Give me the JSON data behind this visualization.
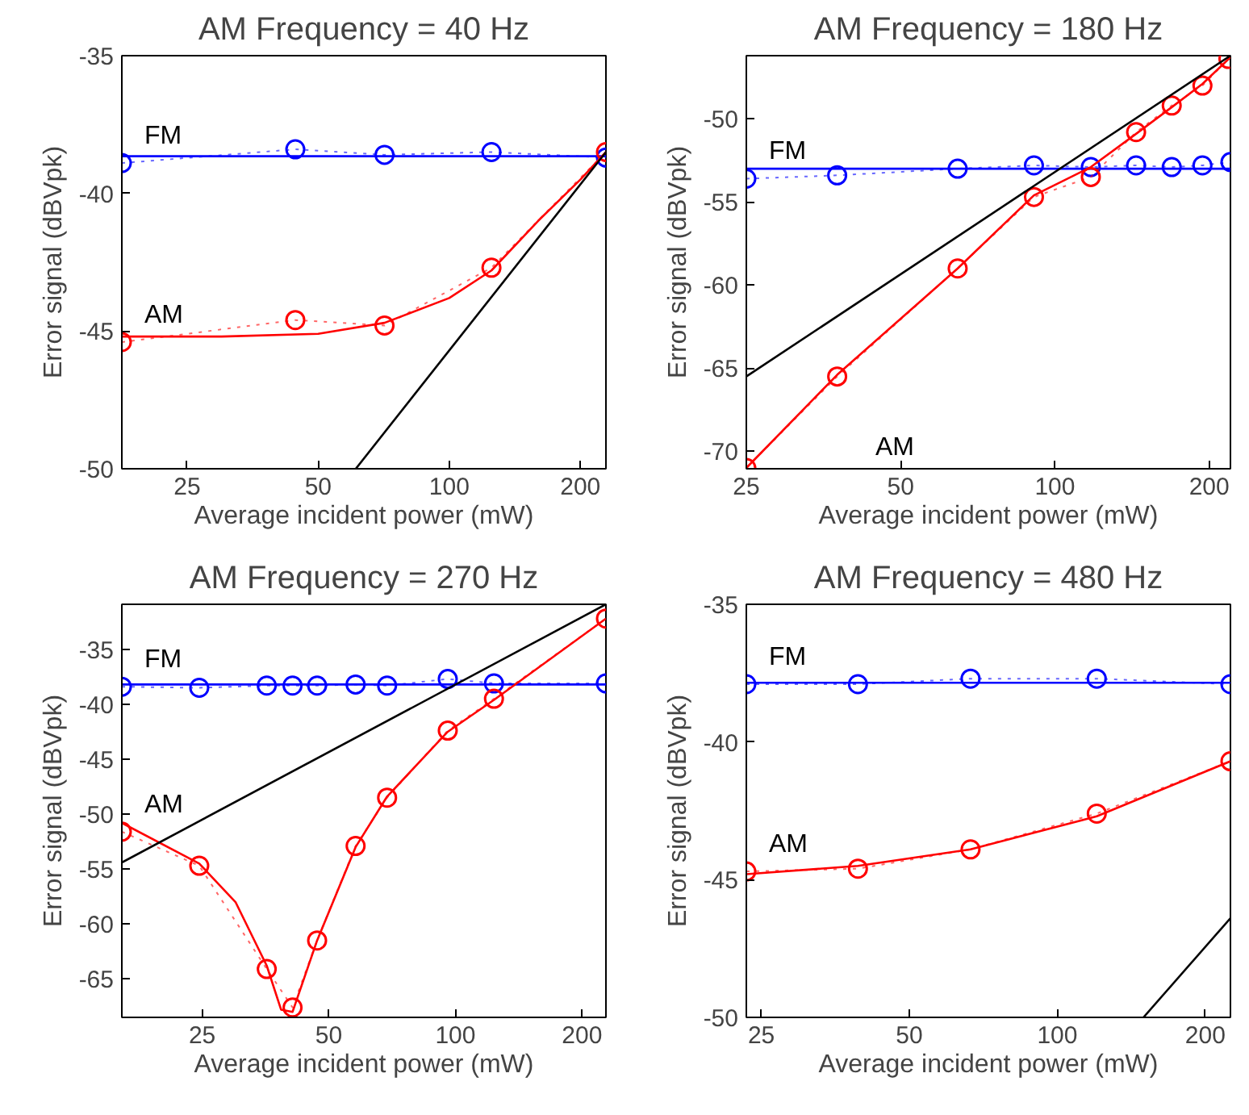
{
  "chart_data": [
    {
      "type": "line",
      "title": "AM Frequency = 40 Hz",
      "xlabel": "Average incident power (mW)",
      "ylabel": "Error signal (dBVpk)",
      "log": "x",
      "xlim": [
        17.7,
        229
      ],
      "xticks": [
        25,
        50,
        100,
        200
      ],
      "ylim": [
        -50,
        -35
      ],
      "yticks": [
        -50,
        -45,
        -40,
        -35
      ],
      "series": [
        {
          "name": "FM",
          "color": "#0000ff",
          "marker": "circle",
          "line_style": "dotted",
          "x": [
            17.7,
            44.3,
            71,
            125,
            229
          ],
          "values": [
            -38.9,
            -38.4,
            -38.6,
            -38.5,
            -38.7
          ]
        },
        {
          "color": "#0000ff",
          "marker": "none",
          "line_style": "solid",
          "x": [
            17.7,
            229
          ],
          "values": [
            -38.65,
            -38.65
          ]
        },
        {
          "name": "AM",
          "color": "#ff0000",
          "marker": "circle",
          "line_style": "dotted",
          "x": [
            17.7,
            44.3,
            71,
            125,
            229
          ],
          "values": [
            -45.4,
            -44.6,
            -44.8,
            -42.7,
            -38.5
          ]
        },
        {
          "color": "#ff0000",
          "marker": "none",
          "line_style": "solid",
          "x": [
            17.7,
            30,
            50,
            71,
            100,
            125,
            160,
            200,
            229
          ],
          "values": [
            -45.2,
            -45.2,
            -45.1,
            -44.7,
            -43.8,
            -42.8,
            -41.0,
            -39.5,
            -38.5
          ]
        },
        {
          "color": "#000000",
          "marker": "none",
          "line_style": "solid",
          "x": [
            61,
            229
          ],
          "values": [
            -50,
            -38.5
          ]
        }
      ]
    },
    {
      "type": "line",
      "title": "AM Frequency = 180 Hz",
      "xlabel": "Average incident power (mW)",
      "ylabel": "Error signal (dBVpk)",
      "log": "x",
      "xlim": [
        25,
        220
      ],
      "xticks": [
        25,
        50,
        100,
        200
      ],
      "ylim": [
        -71.05,
        -46.2
      ],
      "yticks": [
        -70,
        -65,
        -60,
        -55,
        -50
      ],
      "series": [
        {
          "name": "FM",
          "color": "#0000ff",
          "marker": "circle",
          "line_style": "dotted",
          "x": [
            25,
            37.6,
            64.6,
            91,
            117.5,
            144,
            169,
            194,
            220
          ],
          "values": [
            -53.6,
            -53.4,
            -53.0,
            -52.8,
            -52.9,
            -52.8,
            -52.9,
            -52.8,
            -52.6
          ]
        },
        {
          "color": "#0000ff",
          "marker": "none",
          "line_style": "solid",
          "x": [
            25,
            220
          ],
          "values": [
            -53.0,
            -53.0
          ]
        },
        {
          "name": "AM",
          "color": "#ff0000",
          "marker": "circle",
          "line_style": "dotted",
          "x": [
            25,
            37.6,
            64.6,
            91,
            117.5,
            144,
            169,
            194,
            218
          ],
          "values": [
            -71.0,
            -65.5,
            -59.0,
            -54.7,
            -53.5,
            -50.8,
            -49.2,
            -48.0,
            -46.4
          ]
        },
        {
          "color": "#ff0000",
          "marker": "none",
          "line_style": "solid",
          "x": [
            25,
            37.6,
            64.6,
            91,
            117.5,
            144,
            169,
            194,
            220
          ],
          "values": [
            -71.0,
            -65.4,
            -59.0,
            -54.6,
            -52.9,
            -50.9,
            -49.3,
            -47.9,
            -46.3
          ]
        },
        {
          "color": "#000000",
          "marker": "none",
          "line_style": "solid",
          "x": [
            25,
            220
          ],
          "values": [
            -65.5,
            -46.2
          ]
        }
      ]
    },
    {
      "type": "line",
      "title": "AM Frequency = 270 Hz",
      "xlabel": "Average incident power (mW)",
      "ylabel": "Error signal (dBVpk)",
      "log": "x",
      "xlim": [
        16.1,
        228
      ],
      "xticks": [
        25,
        50,
        100,
        200
      ],
      "ylim": [
        -68.5,
        -30.9
      ],
      "yticks": [
        -65,
        -60,
        -55,
        -50,
        -45,
        -40,
        -35
      ],
      "series": [
        {
          "name": "FM",
          "color": "#0000ff",
          "marker": "circle",
          "line_style": "dotted",
          "x": [
            16.1,
            24.6,
            35.6,
            41.0,
            46.9,
            57.9,
            68.8,
            95.9,
            123.5,
            228
          ],
          "values": [
            -38.4,
            -38.5,
            -38.3,
            -38.3,
            -38.3,
            -38.2,
            -38.3,
            -37.7,
            -38.1,
            -38.1
          ]
        },
        {
          "color": "#0000ff",
          "marker": "none",
          "line_style": "solid",
          "x": [
            16.1,
            228
          ],
          "values": [
            -38.2,
            -38.2
          ]
        },
        {
          "name": "AM",
          "color": "#ff0000",
          "marker": "circle",
          "line_style": "dotted",
          "x": [
            16.1,
            24.6,
            35.6,
            41.0,
            46.9,
            57.9,
            68.8,
            95.9,
            123.5,
            228
          ],
          "values": [
            -51.6,
            -54.7,
            -64.1,
            -67.6,
            -61.5,
            -52.9,
            -48.5,
            -42.4,
            -39.5,
            -32.2
          ]
        },
        {
          "color": "#ff0000",
          "marker": "none",
          "line_style": "solid",
          "x": [
            16.1,
            24.6,
            30,
            35.6,
            38.5,
            41,
            46.9,
            57.9,
            68.8,
            95.9,
            123.5,
            228
          ],
          "values": [
            -50.8,
            -54.5,
            -58,
            -63.8,
            -67.8,
            -68.0,
            -61.5,
            -53.0,
            -48.4,
            -42.5,
            -39.6,
            -32.2
          ]
        },
        {
          "color": "#000000",
          "marker": "none",
          "line_style": "solid",
          "x": [
            16.1,
            228
          ],
          "values": [
            -54.4,
            -30.9
          ]
        }
      ]
    },
    {
      "type": "line",
      "title": "AM Frequency = 480 Hz",
      "xlabel": "Average incident power (mW)",
      "ylabel": "Error signal (dBVpk)",
      "log": "x",
      "xlim": [
        23.3,
        225
      ],
      "xticks": [
        25,
        50,
        100,
        200
      ],
      "ylim": [
        -50,
        -35
      ],
      "yticks": [
        -50,
        -45,
        -40,
        -35
      ],
      "series": [
        {
          "name": "FM",
          "color": "#0000ff",
          "marker": "circle",
          "line_style": "dotted",
          "x": [
            23.3,
            39.3,
            66.6,
            120.3,
            225
          ],
          "values": [
            -37.9,
            -37.9,
            -37.7,
            -37.7,
            -37.9
          ]
        },
        {
          "color": "#0000ff",
          "marker": "none",
          "line_style": "solid",
          "x": [
            23.3,
            225
          ],
          "values": [
            -37.85,
            -37.85
          ]
        },
        {
          "name": "AM",
          "color": "#ff0000",
          "marker": "circle",
          "line_style": "dotted",
          "x": [
            23.3,
            39.3,
            66.6,
            120.3,
            225
          ],
          "values": [
            -44.7,
            -44.6,
            -43.9,
            -42.6,
            -40.7
          ]
        },
        {
          "color": "#ff0000",
          "marker": "none",
          "line_style": "solid",
          "x": [
            23.3,
            39.3,
            66.6,
            120.3,
            225
          ],
          "values": [
            -44.8,
            -44.5,
            -43.9,
            -42.7,
            -40.7
          ]
        },
        {
          "color": "#000000",
          "marker": "none",
          "line_style": "solid",
          "x": [
            149.7,
            225
          ],
          "values": [
            -50,
            -46.4
          ]
        }
      ]
    }
  ]
}
